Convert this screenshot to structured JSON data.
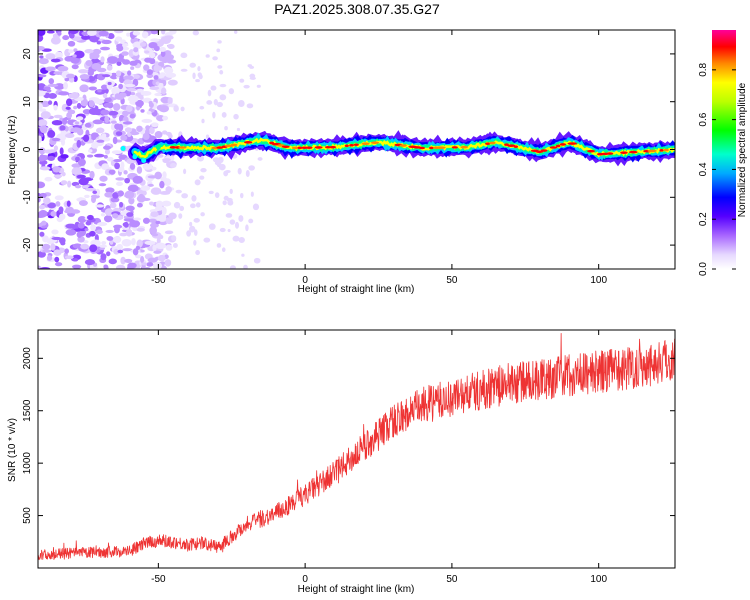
{
  "title": "PAZ1.2025.308.07.35.G27",
  "chart_data": [
    {
      "type": "heatmap",
      "xlabel": "Height of straight line (km)",
      "ylabel": "Frequency (Hz)",
      "xlim": [
        -91,
        126
      ],
      "ylim": [
        -25,
        25
      ],
      "xticks": [
        -50,
        0,
        50,
        100
      ],
      "yticks": [
        -20,
        -10,
        0,
        10,
        20
      ],
      "colorbar": {
        "label": "Normalized spectral amplitude",
        "ticks": [
          0.0,
          0.2,
          0.4,
          0.6,
          0.8
        ],
        "range": [
          0,
          0.96
        ],
        "colors": [
          "#ffffff",
          "#c8a8ff",
          "#7a22ff",
          "#0000ff",
          "#00ffff",
          "#00ff00",
          "#ffff00",
          "#ff0000",
          "#ff0099"
        ]
      },
      "ridge": [
        {
          "x": -91,
          "y": 0
        },
        {
          "x": -60,
          "y": 0
        },
        {
          "x": -55,
          "y": -1.5
        },
        {
          "x": -50,
          "y": 0.5
        },
        {
          "x": -30,
          "y": 0.3
        },
        {
          "x": -15,
          "y": 2
        },
        {
          "x": -5,
          "y": 0.3
        },
        {
          "x": 10,
          "y": 0.5
        },
        {
          "x": 25,
          "y": 1.5
        },
        {
          "x": 40,
          "y": 0.3
        },
        {
          "x": 55,
          "y": 0.5
        },
        {
          "x": 65,
          "y": 1.5
        },
        {
          "x": 80,
          "y": -0.5
        },
        {
          "x": 90,
          "y": 1.5
        },
        {
          "x": 100,
          "y": -1
        },
        {
          "x": 126,
          "y": 0
        }
      ],
      "noise_region": [
        -91,
        -45
      ]
    },
    {
      "type": "line",
      "xlabel": "Height of straight line (km)",
      "ylabel": "SNR (10 * v/v)",
      "xlim": [
        -91,
        126
      ],
      "ylim": [
        0,
        2270
      ],
      "xticks": [
        -50,
        0,
        50,
        100
      ],
      "yticks": [
        500,
        1000,
        1500,
        2000
      ],
      "color": "#ee3333",
      "series": [
        {
          "x": [
            -91,
            -80,
            -70,
            -60,
            -55,
            -50,
            -45,
            -40,
            -35,
            -30,
            -25,
            -20,
            -10,
            0,
            10,
            20,
            30,
            40,
            50,
            60,
            70,
            80,
            90,
            100,
            110,
            120,
            126
          ],
          "values": [
            120,
            140,
            150,
            160,
            230,
            260,
            250,
            220,
            240,
            200,
            300,
            420,
            520,
            700,
            900,
            1150,
            1400,
            1550,
            1620,
            1700,
            1760,
            1800,
            1840,
            1870,
            1910,
            1960,
            2000
          ]
        }
      ]
    }
  ]
}
